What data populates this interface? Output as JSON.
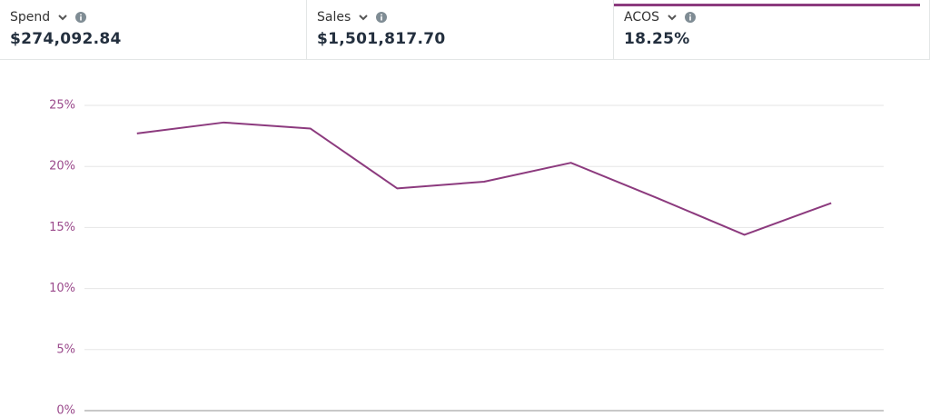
{
  "metrics": [
    {
      "label": "Spend",
      "value": "$274,092.84"
    },
    {
      "label": "Sales",
      "value": "$1,501,817.70"
    },
    {
      "label": "ACOS",
      "value": "18.25%"
    }
  ],
  "chart_data": {
    "type": "line",
    "categories": [
      null,
      null,
      null,
      null,
      null,
      null,
      null,
      null,
      null
    ],
    "series": [
      {
        "name": "ACOS",
        "color": "#8c3a7e",
        "values": [
          22.7,
          23.6,
          23.1,
          18.2,
          18.75,
          20.3,
          17.4,
          14.4,
          17.0
        ]
      }
    ],
    "ylim": [
      0,
      25
    ],
    "yticks": [
      {
        "value": 0,
        "label": "0%"
      },
      {
        "value": 5,
        "label": "5%"
      },
      {
        "value": 10,
        "label": "10%"
      },
      {
        "value": 15,
        "label": "15%"
      },
      {
        "value": 20,
        "label": "20%"
      },
      {
        "value": 25,
        "label": "25%"
      }
    ],
    "grid": true
  }
}
